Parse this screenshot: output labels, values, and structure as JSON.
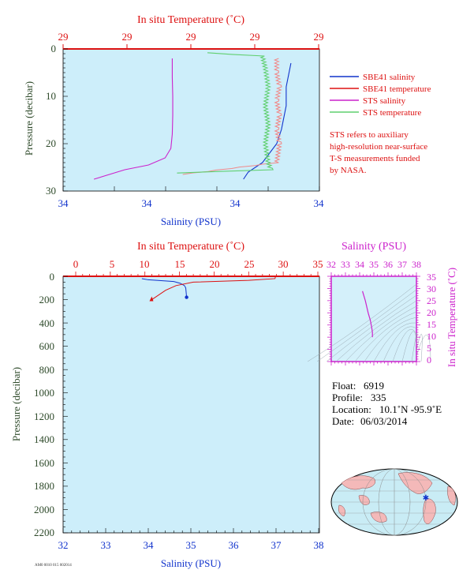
{
  "colors": {
    "panel_bg": "#cdeefa",
    "red": "#dd1111",
    "blue": "#1133cc",
    "magenta": "#cc22cc",
    "green": "#5fcf6f",
    "salmon": "#f08a8a",
    "dark_green": "#2e4a2a",
    "navy": "#2244aa"
  },
  "top_panel": {
    "top_axis_label": "In situ Temperature (˚C)",
    "bottom_axis_label": "Salinity (PSU)",
    "left_axis_label": "Pressure (decibar)",
    "top_ticks": [
      "29",
      "29",
      "29",
      "29",
      "29"
    ],
    "bottom_ticks": [
      "34",
      "34",
      "34",
      "34",
      "34"
    ],
    "left_ticks": [
      "0",
      "10",
      "20",
      "30"
    ]
  },
  "legend": {
    "items": [
      {
        "label": "SBE41 salinity",
        "color": "#1133cc"
      },
      {
        "label": "SBE41 temperature",
        "color": "#dd1111"
      },
      {
        "label": "STS salinity",
        "color": "#cc22cc"
      },
      {
        "label": "STS temperature",
        "color": "#5fcf6f"
      }
    ],
    "note_lines": [
      "STS refers to auxiliary",
      "high-resolution near-surface",
      "T-S measurements funded",
      "by NASA."
    ]
  },
  "bottom_panel": {
    "top_axis_label": "In situ Temperature (˚C)",
    "bottom_axis_label": "Salinity (PSU)",
    "left_axis_label": "Pressure (decibar)",
    "top_ticks": [
      "0",
      "5",
      "10",
      "15",
      "20",
      "25",
      "30",
      "35"
    ],
    "bottom_ticks": [
      "32",
      "33",
      "34",
      "35",
      "36",
      "37",
      "38"
    ],
    "left_ticks": [
      "0",
      "200",
      "400",
      "600",
      "800",
      "1000",
      "1200",
      "1400",
      "1600",
      "1800",
      "2000",
      "2200"
    ]
  },
  "ts_panel": {
    "top_axis_label": "Salinity (PSU)",
    "right_axis_label": "In situ Temperature (˚C)",
    "top_ticks": [
      "32",
      "33",
      "34",
      "35",
      "36",
      "37",
      "38"
    ],
    "right_ticks": [
      "35",
      "30",
      "25",
      "20",
      "15",
      "10",
      "5",
      "0"
    ]
  },
  "info": {
    "float_label": "Float:",
    "float_value": "6919",
    "profile_label": "Profile:",
    "profile_value": "335",
    "location_label": "Location:",
    "location_value": "10.1˚N  -95.9˚E",
    "date_label": "Date:",
    "date_value": "06/03/2014"
  },
  "footer_small": "AM0 0010 015 002014",
  "chart_data": [
    {
      "type": "line",
      "title": "",
      "xlabel": "Salinity (PSU)",
      "x2label": "In situ Temperature (˚C)",
      "ylabel": "Pressure (decibar)",
      "ylim": [
        30,
        0
      ],
      "series": [
        {
          "name": "SBE41 salinity",
          "x": [
            34.4,
            34.39,
            34.39,
            34.38,
            34.37,
            34.34,
            34.31,
            34.3
          ],
          "y": [
            3,
            8,
            12,
            17,
            20,
            24,
            26,
            27.5
          ],
          "color": "#1133cc"
        },
        {
          "name": "STS salinity",
          "x": [
            34.15,
            34.15,
            34.151,
            34.151,
            34.15,
            34.147,
            34.135,
            34.1,
            34.05,
            33.985
          ],
          "y": [
            2,
            6,
            10,
            14,
            18,
            21,
            23,
            24.5,
            25.5,
            27.5
          ],
          "color": "#cc22cc"
        },
        {
          "name": "SBE41 temperature",
          "x": [
            28.95,
            28.95,
            28.96,
            28.95,
            28.96,
            28.95,
            28.96,
            28.95,
            28.62
          ],
          "y": [
            2,
            5,
            8,
            11,
            14,
            17,
            20,
            24,
            26.5
          ],
          "color": "#f08a8a"
        },
        {
          "name": "STS temperature",
          "x": [
            28.7,
            28.9,
            28.91,
            28.92,
            28.91,
            28.92,
            28.91,
            28.92,
            28.93,
            28.6
          ],
          "y": [
            0.8,
            1.5,
            4,
            8,
            12,
            16,
            20,
            24,
            25.5,
            26.2
          ],
          "color": "#5fcf6f"
        }
      ]
    },
    {
      "type": "line",
      "title": "",
      "xlabel": "Salinity (PSU)",
      "x2label": "In situ Temperature (˚C)",
      "ylabel": "Pressure (decibar)",
      "xlim": [
        32,
        38
      ],
      "x2lim": [
        0,
        35
      ],
      "ylim": [
        2200,
        0
      ],
      "series": [
        {
          "name": "SBE41 salinity",
          "x": [
            33.85,
            34.0,
            34.6,
            34.75,
            34.85,
            34.88,
            34.9
          ],
          "y": [
            20,
            30,
            45,
            60,
            80,
            100,
            180
          ],
          "color": "#1133cc"
        },
        {
          "name": "SBE41 temperature",
          "x": [
            28.9,
            28.8,
            25.0,
            17.0,
            14.5,
            13.0,
            11.0
          ],
          "y": [
            0,
            20,
            35,
            50,
            80,
            120,
            200
          ],
          "color": "#dd1111"
        }
      ]
    },
    {
      "type": "line",
      "title": "",
      "xlabel": "Salinity (PSU)",
      "ylabel": "In situ Temperature (˚C)",
      "xlim": [
        32,
        38
      ],
      "ylim": [
        0,
        35
      ],
      "series": [
        {
          "name": "T-S",
          "x": [
            34.2,
            34.4,
            34.6,
            34.75,
            34.85,
            34.9,
            34.9
          ],
          "y": [
            28.9,
            25,
            20,
            17,
            14,
            12,
            10
          ],
          "color": "#cc22cc"
        }
      ]
    }
  ]
}
